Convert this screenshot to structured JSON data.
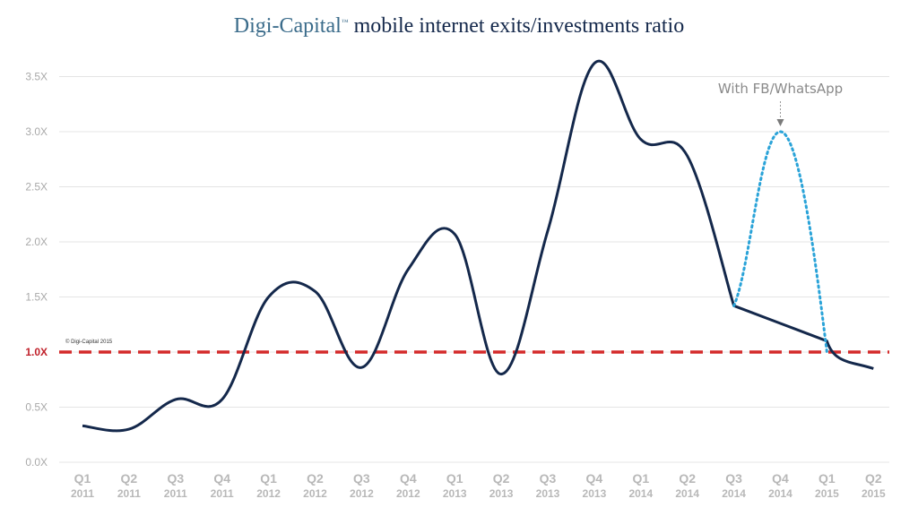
{
  "header": {
    "brand": "Digi-Capital",
    "trademark": "™",
    "title_rest": " mobile internet exits/investments ratio"
  },
  "chart_data": {
    "type": "line",
    "categories": [
      {
        "q": "Q1",
        "year": "2011"
      },
      {
        "q": "Q2",
        "year": "2011"
      },
      {
        "q": "Q3",
        "year": "2011"
      },
      {
        "q": "Q4",
        "year": "2011"
      },
      {
        "q": "Q1",
        "year": "2012"
      },
      {
        "q": "Q2",
        "year": "2012"
      },
      {
        "q": "Q3",
        "year": "2012"
      },
      {
        "q": "Q4",
        "year": "2012"
      },
      {
        "q": "Q1",
        "year": "2013"
      },
      {
        "q": "Q2",
        "year": "2013"
      },
      {
        "q": "Q3",
        "year": "2013"
      },
      {
        "q": "Q4",
        "year": "2013"
      },
      {
        "q": "Q1",
        "year": "2014"
      },
      {
        "q": "Q2",
        "year": "2014"
      },
      {
        "q": "Q3",
        "year": "2014"
      },
      {
        "q": "Q4",
        "year": "2014"
      },
      {
        "q": "Q1",
        "year": "2015"
      },
      {
        "q": "Q2",
        "year": "2015"
      }
    ],
    "series": [
      {
        "values": [
          0.33,
          0.3,
          0.57,
          0.57,
          1.5,
          1.55,
          0.86,
          1.75,
          2.07,
          0.8,
          2.1,
          3.62,
          2.93,
          2.78,
          1.42,
          1.26,
          1.1,
          0.85
        ],
        "color": "#14284b",
        "style": "solid"
      },
      {
        "name": "With FB/WhatsApp",
        "points": [
          {
            "x": "Q3 2014",
            "y": 1.42
          },
          {
            "x": "Q4 2014",
            "y": 3.0
          },
          {
            "x": "Q1 2015",
            "y": 1.0
          }
        ],
        "color": "#2aa3d8",
        "style": "dotted"
      }
    ],
    "reference_line": {
      "y": 1.0,
      "color": "#d42a2a",
      "style": "dashed"
    },
    "yticks": [
      "0.0X",
      "0.5X",
      "1.0X",
      "1.5X",
      "2.0X",
      "2.5X",
      "3.0X",
      "3.5X"
    ],
    "highlight_tick": "1.0X",
    "ylim": [
      0,
      3.5
    ],
    "grid": true,
    "annotation": "With FB/WhatsApp",
    "copyright": "© Digi-Capital 2015"
  }
}
